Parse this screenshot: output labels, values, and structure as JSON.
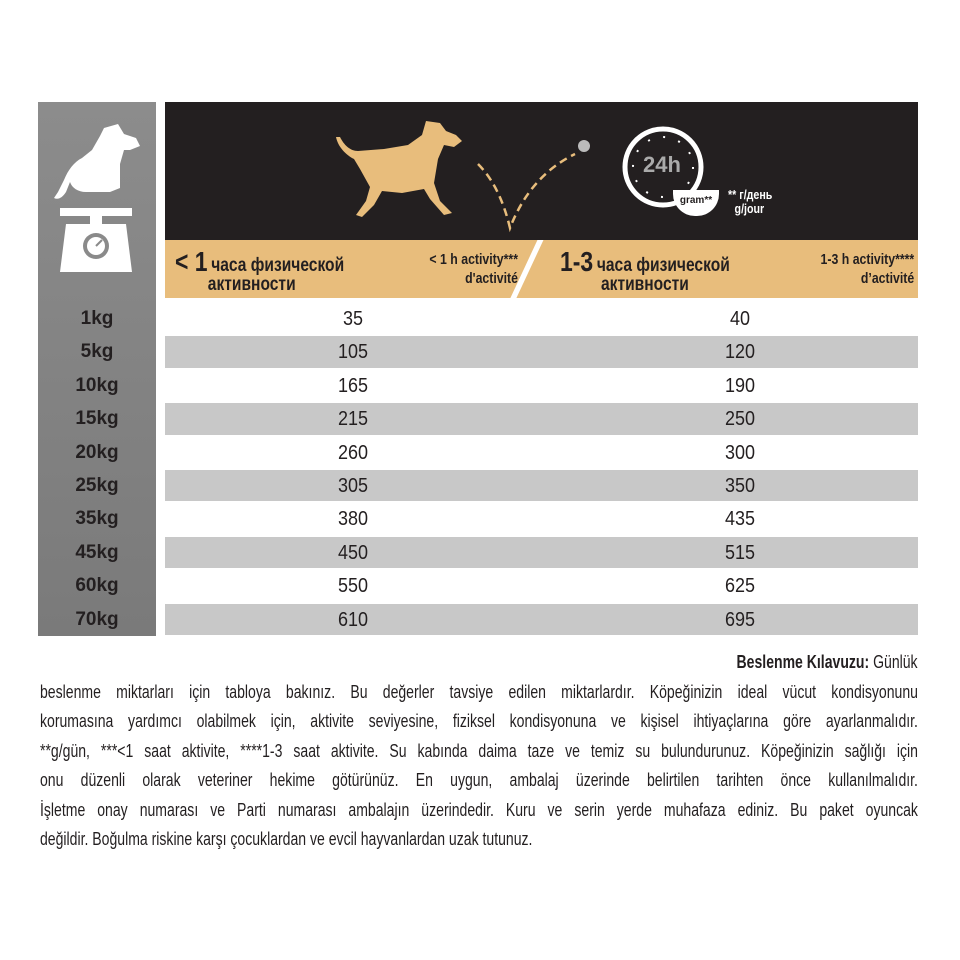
{
  "header": {
    "col1_ru_big": "< 1",
    "col1_ru_rest": "часа физической",
    "col1_ru_line2": "активности",
    "col1_fr_line1": "< 1 h activity***",
    "col1_fr_line2": "d'activité",
    "col2_ru_big": "1-3",
    "col2_ru_rest": "часа физической",
    "col2_ru_line2": "активности",
    "col2_fr_line1": "1-3 h activity****",
    "col2_fr_line2": "d’activité",
    "clock_label": "24h",
    "bowl_label": "gram**",
    "unit_ru": "** г/день",
    "unit_fr": "g/jour",
    "icons": [
      "dog-on-scale-icon",
      "running-dog-icon",
      "ball-trajectory-icon",
      "clock-24h-icon",
      "bowl-icon"
    ],
    "colors": {
      "header_bg": "#231f20",
      "tan": "#e8bd7c",
      "left_col": "#858585",
      "alt_row": "#c8c8c8"
    }
  },
  "rows": [
    {
      "weight": "1kg",
      "low": "35",
      "high": "40"
    },
    {
      "weight": "5kg",
      "low": "105",
      "high": "120"
    },
    {
      "weight": "10kg",
      "low": "165",
      "high": "190"
    },
    {
      "weight": "15kg",
      "low": "215",
      "high": "250"
    },
    {
      "weight": "20kg",
      "low": "260",
      "high": "300"
    },
    {
      "weight": "25kg",
      "low": "305",
      "high": "350"
    },
    {
      "weight": "35kg",
      "low": "380",
      "high": "435"
    },
    {
      "weight": "45kg",
      "low": "450",
      "high": "515"
    },
    {
      "weight": "60kg",
      "low": "550",
      "high": "625"
    },
    {
      "weight": "70kg",
      "low": "610",
      "high": "695"
    }
  ],
  "guide": {
    "title": "Beslenme Kılavuzu:",
    "lines": [
      "Günlük",
      "beslenme miktarları için tabloya bakınız. Bu değerler tavsiye edilen miktarlardır. Köpeğinizin ideal vücut kondisyonunu",
      "korumasına yardımcı olabilmek için, aktivite seviyesine, fiziksel kondisyonuna ve kişisel ihtiyaçlarına göre ayarlanmalıdır.",
      "**g/gün, ***<1 saat aktivite, ****1-3 saat aktivite. Su kabında daima taze ve temiz su bulundurunuz. Köpeğinizin sağlığı için",
      "onu düzenli olarak veteriner hekime götürünüz. En uygun, ambalaj üzerinde belirtilen tarihten önce kullanılmalıdır.",
      "İşletme onay numarası ve Parti numarası ambalajın üzerindedir. Kuru ve serin yerde muhafaza ediniz. Bu paket oyuncak",
      "değildir. Boğulma riskine karşı çocuklardan ve evcil hayvanlardan uzak tutunuz."
    ]
  }
}
